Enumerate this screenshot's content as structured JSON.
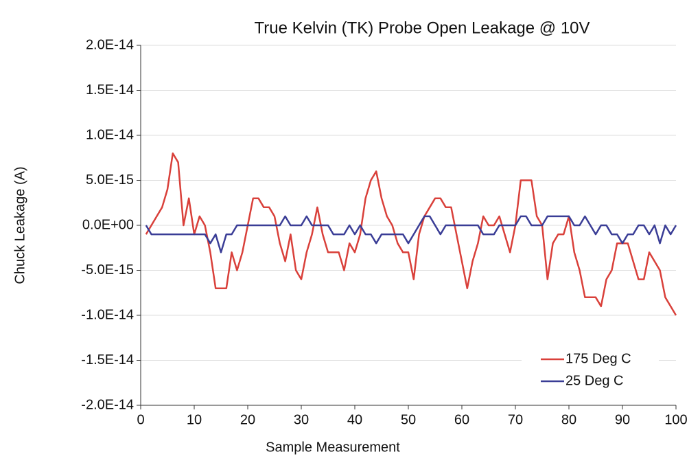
{
  "chart_data": {
    "type": "line",
    "title": "True Kelvin (TK) Probe Open Leakage @ 10V",
    "x_label": "Sample Measurement",
    "y_label": "Chuck Leakage (A)",
    "x": [
      1,
      2,
      3,
      4,
      5,
      6,
      7,
      8,
      9,
      10,
      11,
      12,
      13,
      14,
      15,
      16,
      17,
      18,
      19,
      20,
      21,
      22,
      23,
      24,
      25,
      26,
      27,
      28,
      29,
      30,
      31,
      32,
      33,
      34,
      35,
      36,
      37,
      38,
      39,
      40,
      41,
      42,
      43,
      44,
      45,
      46,
      47,
      48,
      49,
      50,
      51,
      52,
      53,
      54,
      55,
      56,
      57,
      58,
      59,
      60,
      61,
      62,
      63,
      64,
      65,
      66,
      67,
      68,
      69,
      70,
      71,
      72,
      73,
      74,
      75,
      76,
      77,
      78,
      79,
      80,
      81,
      82,
      83,
      84,
      85,
      86,
      87,
      88,
      89,
      90,
      91,
      92,
      93,
      94,
      95,
      96,
      97,
      98,
      99,
      100
    ],
    "series": [
      {
        "name": "175 Deg C",
        "color": "#d9403a",
        "values": [
          -1e-15,
          0,
          1e-15,
          2e-15,
          4e-15,
          8e-15,
          7e-15,
          0,
          3e-15,
          -1e-15,
          1e-15,
          0,
          -3e-15,
          -7e-15,
          -7e-15,
          -7e-15,
          -3e-15,
          -5e-15,
          -3e-15,
          0,
          3e-15,
          3e-15,
          2e-15,
          2e-15,
          1e-15,
          -2e-15,
          -4e-15,
          -1e-15,
          -5e-15,
          -6e-15,
          -3e-15,
          -1e-15,
          2e-15,
          -1e-15,
          -3e-15,
          -3e-15,
          -3e-15,
          -5e-15,
          -2e-15,
          -3e-15,
          -1e-15,
          3e-15,
          5e-15,
          6e-15,
          3e-15,
          1e-15,
          0,
          -2e-15,
          -3e-15,
          -3e-15,
          -6e-15,
          -1e-15,
          1e-15,
          2e-15,
          3e-15,
          3e-15,
          2e-15,
          2e-15,
          -1e-15,
          -4e-15,
          -7e-15,
          -4e-15,
          -2e-15,
          1e-15,
          0,
          0,
          1e-15,
          -1e-15,
          -3e-15,
          0,
          5e-15,
          5e-15,
          5e-15,
          1e-15,
          0,
          -6e-15,
          -2e-15,
          -1e-15,
          -1e-15,
          1e-15,
          -3e-15,
          -5e-15,
          -8e-15,
          -8e-15,
          -8e-15,
          -9e-15,
          -6e-15,
          -5e-15,
          -2e-15,
          -2e-15,
          -2e-15,
          -4e-15,
          -6e-15,
          -6e-15,
          -3e-15,
          -4e-15,
          -5e-15,
          -8e-15,
          -9e-15,
          -1e-14
        ]
      },
      {
        "name": "25 Deg C",
        "color": "#3a3d96",
        "values": [
          0,
          -1e-15,
          -1e-15,
          -1e-15,
          -1e-15,
          -1e-15,
          -1e-15,
          -1e-15,
          -1e-15,
          -1e-15,
          -1e-15,
          -1e-15,
          -2e-15,
          -1e-15,
          -3e-15,
          -1e-15,
          -1e-15,
          0,
          0,
          0,
          0,
          0,
          0,
          0,
          0,
          0,
          1e-15,
          0,
          0,
          0,
          1e-15,
          0,
          0,
          0,
          0,
          -1e-15,
          -1e-15,
          -1e-15,
          0,
          -1e-15,
          0,
          -1e-15,
          -1e-15,
          -2e-15,
          -1e-15,
          -1e-15,
          -1e-15,
          -1e-15,
          -1e-15,
          -2e-15,
          -1e-15,
          0,
          1e-15,
          1e-15,
          0,
          -1e-15,
          0,
          0,
          0,
          0,
          0,
          0,
          0,
          -1e-15,
          -1e-15,
          -1e-15,
          0,
          0,
          0,
          0,
          1e-15,
          1e-15,
          0,
          0,
          0,
          1e-15,
          1e-15,
          1e-15,
          1e-15,
          1e-15,
          0,
          0,
          1e-15,
          0,
          -1e-15,
          0,
          0,
          -1e-15,
          -1e-15,
          -2e-15,
          -1e-15,
          -1e-15,
          0,
          0,
          -1e-15,
          0,
          -2e-15,
          0,
          -1e-15,
          0
        ]
      }
    ],
    "xlim": [
      0,
      100
    ],
    "xticks": [
      0,
      10,
      20,
      30,
      40,
      50,
      60,
      70,
      80,
      90,
      100
    ],
    "ylim": [
      -2e-14,
      2e-14
    ],
    "yticks": [
      {
        "value": 2e-14,
        "label": "2.0E-14"
      },
      {
        "value": 1.5e-14,
        "label": "1.5E-14"
      },
      {
        "value": 1e-14,
        "label": "1.0E-14"
      },
      {
        "value": 5e-15,
        "label": "5.0E-15"
      },
      {
        "value": 0,
        "label": "0.0E+00"
      },
      {
        "value": -5e-15,
        "label": "-5.0E-15"
      },
      {
        "value": -1e-14,
        "label": "-1.0E-14"
      },
      {
        "value": -1.5e-14,
        "label": "-1.5E-14"
      },
      {
        "value": -2e-14,
        "label": "-2.0E-14"
      }
    ],
    "grid": true,
    "legend": "lower right"
  }
}
